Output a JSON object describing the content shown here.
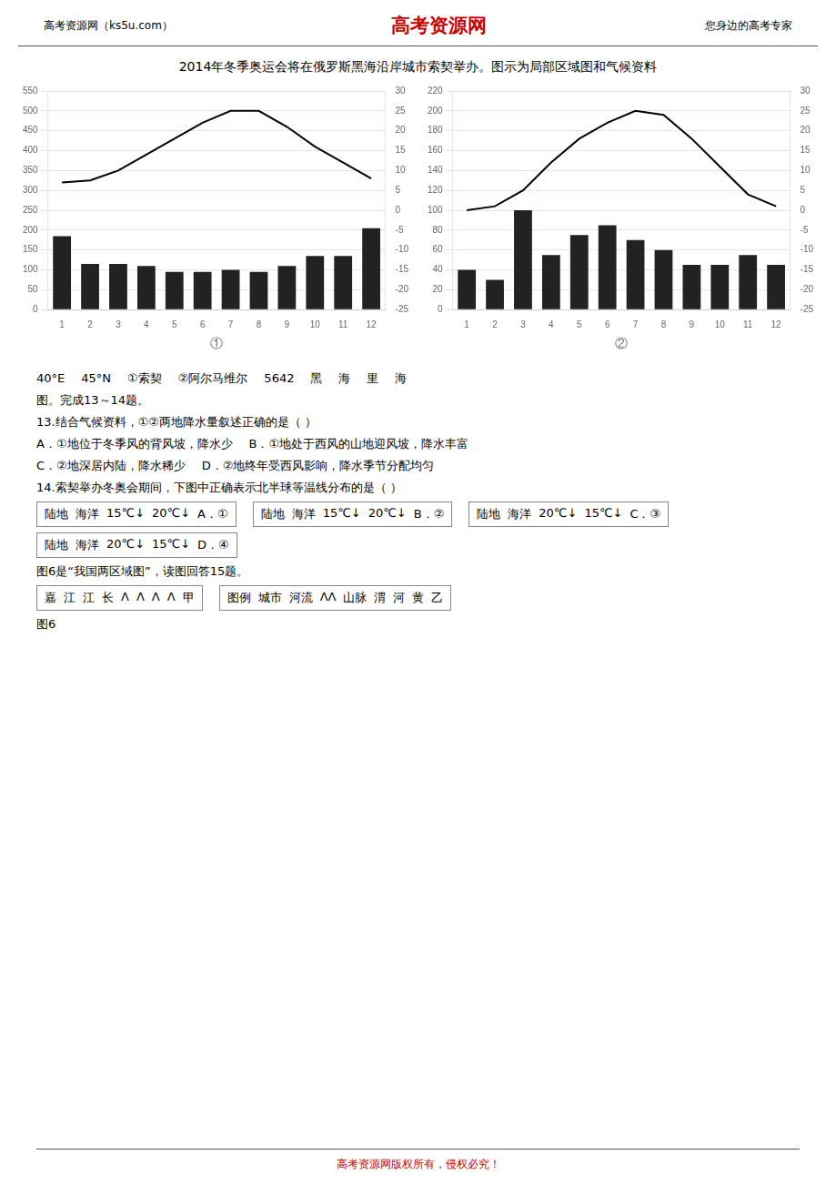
{
  "header": {
    "left": "高考资源网（ks5u.com）",
    "center": "高考资源网",
    "right": "您身边的高考专家",
    "color": "#cc0000"
  },
  "title": "2014年冬季奥运会将在俄罗斯黑海沿岸城市索契举办。图示为局部区域图和气候资料",
  "annotations": [
    [
      "40°E",
      "45°N",
      "①索契",
      "②阿尔马维尔",
      "5642",
      "黑",
      "海",
      "里",
      "海"
    ],
    [
      "图。完成13～14题。"
    ],
    [
      "13.结合气候资料，①②两地降水量叙述正确的是（  ）"
    ],
    [
      "A．①地位于冬季风的背风坡，降水少",
      "B．①地处于西风的山地迎风坡，降水丰富"
    ],
    [
      "C．②地深居内陆，降水稀少",
      "D．②地终年受西风影响，降水季节分配均匀"
    ],
    [
      "14.索契举办冬奥会期间，下图中正确表示北半球等温线分布的是（  ）"
    ],
    [
      [
        "陆地",
        "海洋",
        "15℃↓",
        "20℃↓",
        "A．①"
      ],
      [
        "陆地",
        "海洋",
        "15℃↓",
        "20℃↓",
        "B．②"
      ],
      [
        "陆地",
        "海洋",
        "20℃↓",
        "15℃↓",
        "C．③"
      ],
      [
        "陆地",
        "海洋",
        "20℃↓",
        "15℃↓",
        "D．④"
      ]
    ],
    [
      "图6是“我国两区域图”，读图回答15题。"
    ],
    [
      [
        "嘉",
        "江",
        "江",
        "长",
        "Λ",
        "Λ",
        "Λ",
        "Λ",
        "甲"
      ],
      [
        "图例",
        "城市",
        "河流",
        "ΛΛ",
        "山脉",
        "渭",
        "河",
        "黄",
        "乙"
      ]
    ],
    [
      "图6"
    ]
  ],
  "footer": {
    "text": "高考资源网版权所有，侵权必究！",
    "color": "#cc0000"
  },
  "chart_data": [
    {
      "type": "bar",
      "xlabel": "①",
      "categories": [
        "1",
        "2",
        "3",
        "4",
        "5",
        "6",
        "7",
        "8",
        "9",
        "10",
        "11",
        "12"
      ],
      "series": [
        {
          "type": "bar",
          "color": "#222222",
          "values": [
            185,
            115,
            115,
            110,
            95,
            95,
            100,
            95,
            110,
            135,
            135,
            205
          ]
        },
        {
          "type": "line",
          "color": "#000000",
          "marker": "none",
          "axis": "y2",
          "values": [
            7,
            7.5,
            10,
            14,
            18,
            22,
            25,
            25,
            21,
            16,
            12,
            8
          ]
        }
      ],
      "ylim": [
        0,
        550
      ],
      "yticks": [
        0,
        50,
        100,
        150,
        200,
        250,
        300,
        350,
        400,
        450,
        500,
        550
      ],
      "y2lim": [
        -25,
        30
      ],
      "y2ticks": [
        -25,
        -20,
        -15,
        -10,
        -5,
        0,
        5,
        10,
        15,
        20,
        25,
        30
      ],
      "grid": true,
      "legend": false
    },
    {
      "type": "bar",
      "xlabel": "②",
      "categories": [
        "1",
        "2",
        "3",
        "4",
        "5",
        "6",
        "7",
        "8",
        "9",
        "10",
        "11",
        "12"
      ],
      "series": [
        {
          "type": "bar",
          "color": "#222222",
          "values": [
            40,
            30,
            100,
            55,
            75,
            85,
            70,
            60,
            45,
            45,
            55,
            45
          ]
        },
        {
          "type": "line",
          "color": "#000000",
          "marker": "none",
          "axis": "y2",
          "values": [
            0,
            1,
            5,
            12,
            18,
            22,
            25,
            24,
            18,
            11,
            4,
            1
          ]
        }
      ],
      "ylim": [
        0,
        220
      ],
      "yticks": [
        0,
        20,
        40,
        60,
        80,
        100,
        120,
        140,
        160,
        180,
        200,
        220
      ],
      "y2lim": [
        -25,
        30
      ],
      "y2ticks": [
        -25,
        -20,
        -15,
        -10,
        -5,
        0,
        5,
        10,
        15,
        20,
        25,
        30
      ],
      "grid": true,
      "legend": false
    }
  ]
}
